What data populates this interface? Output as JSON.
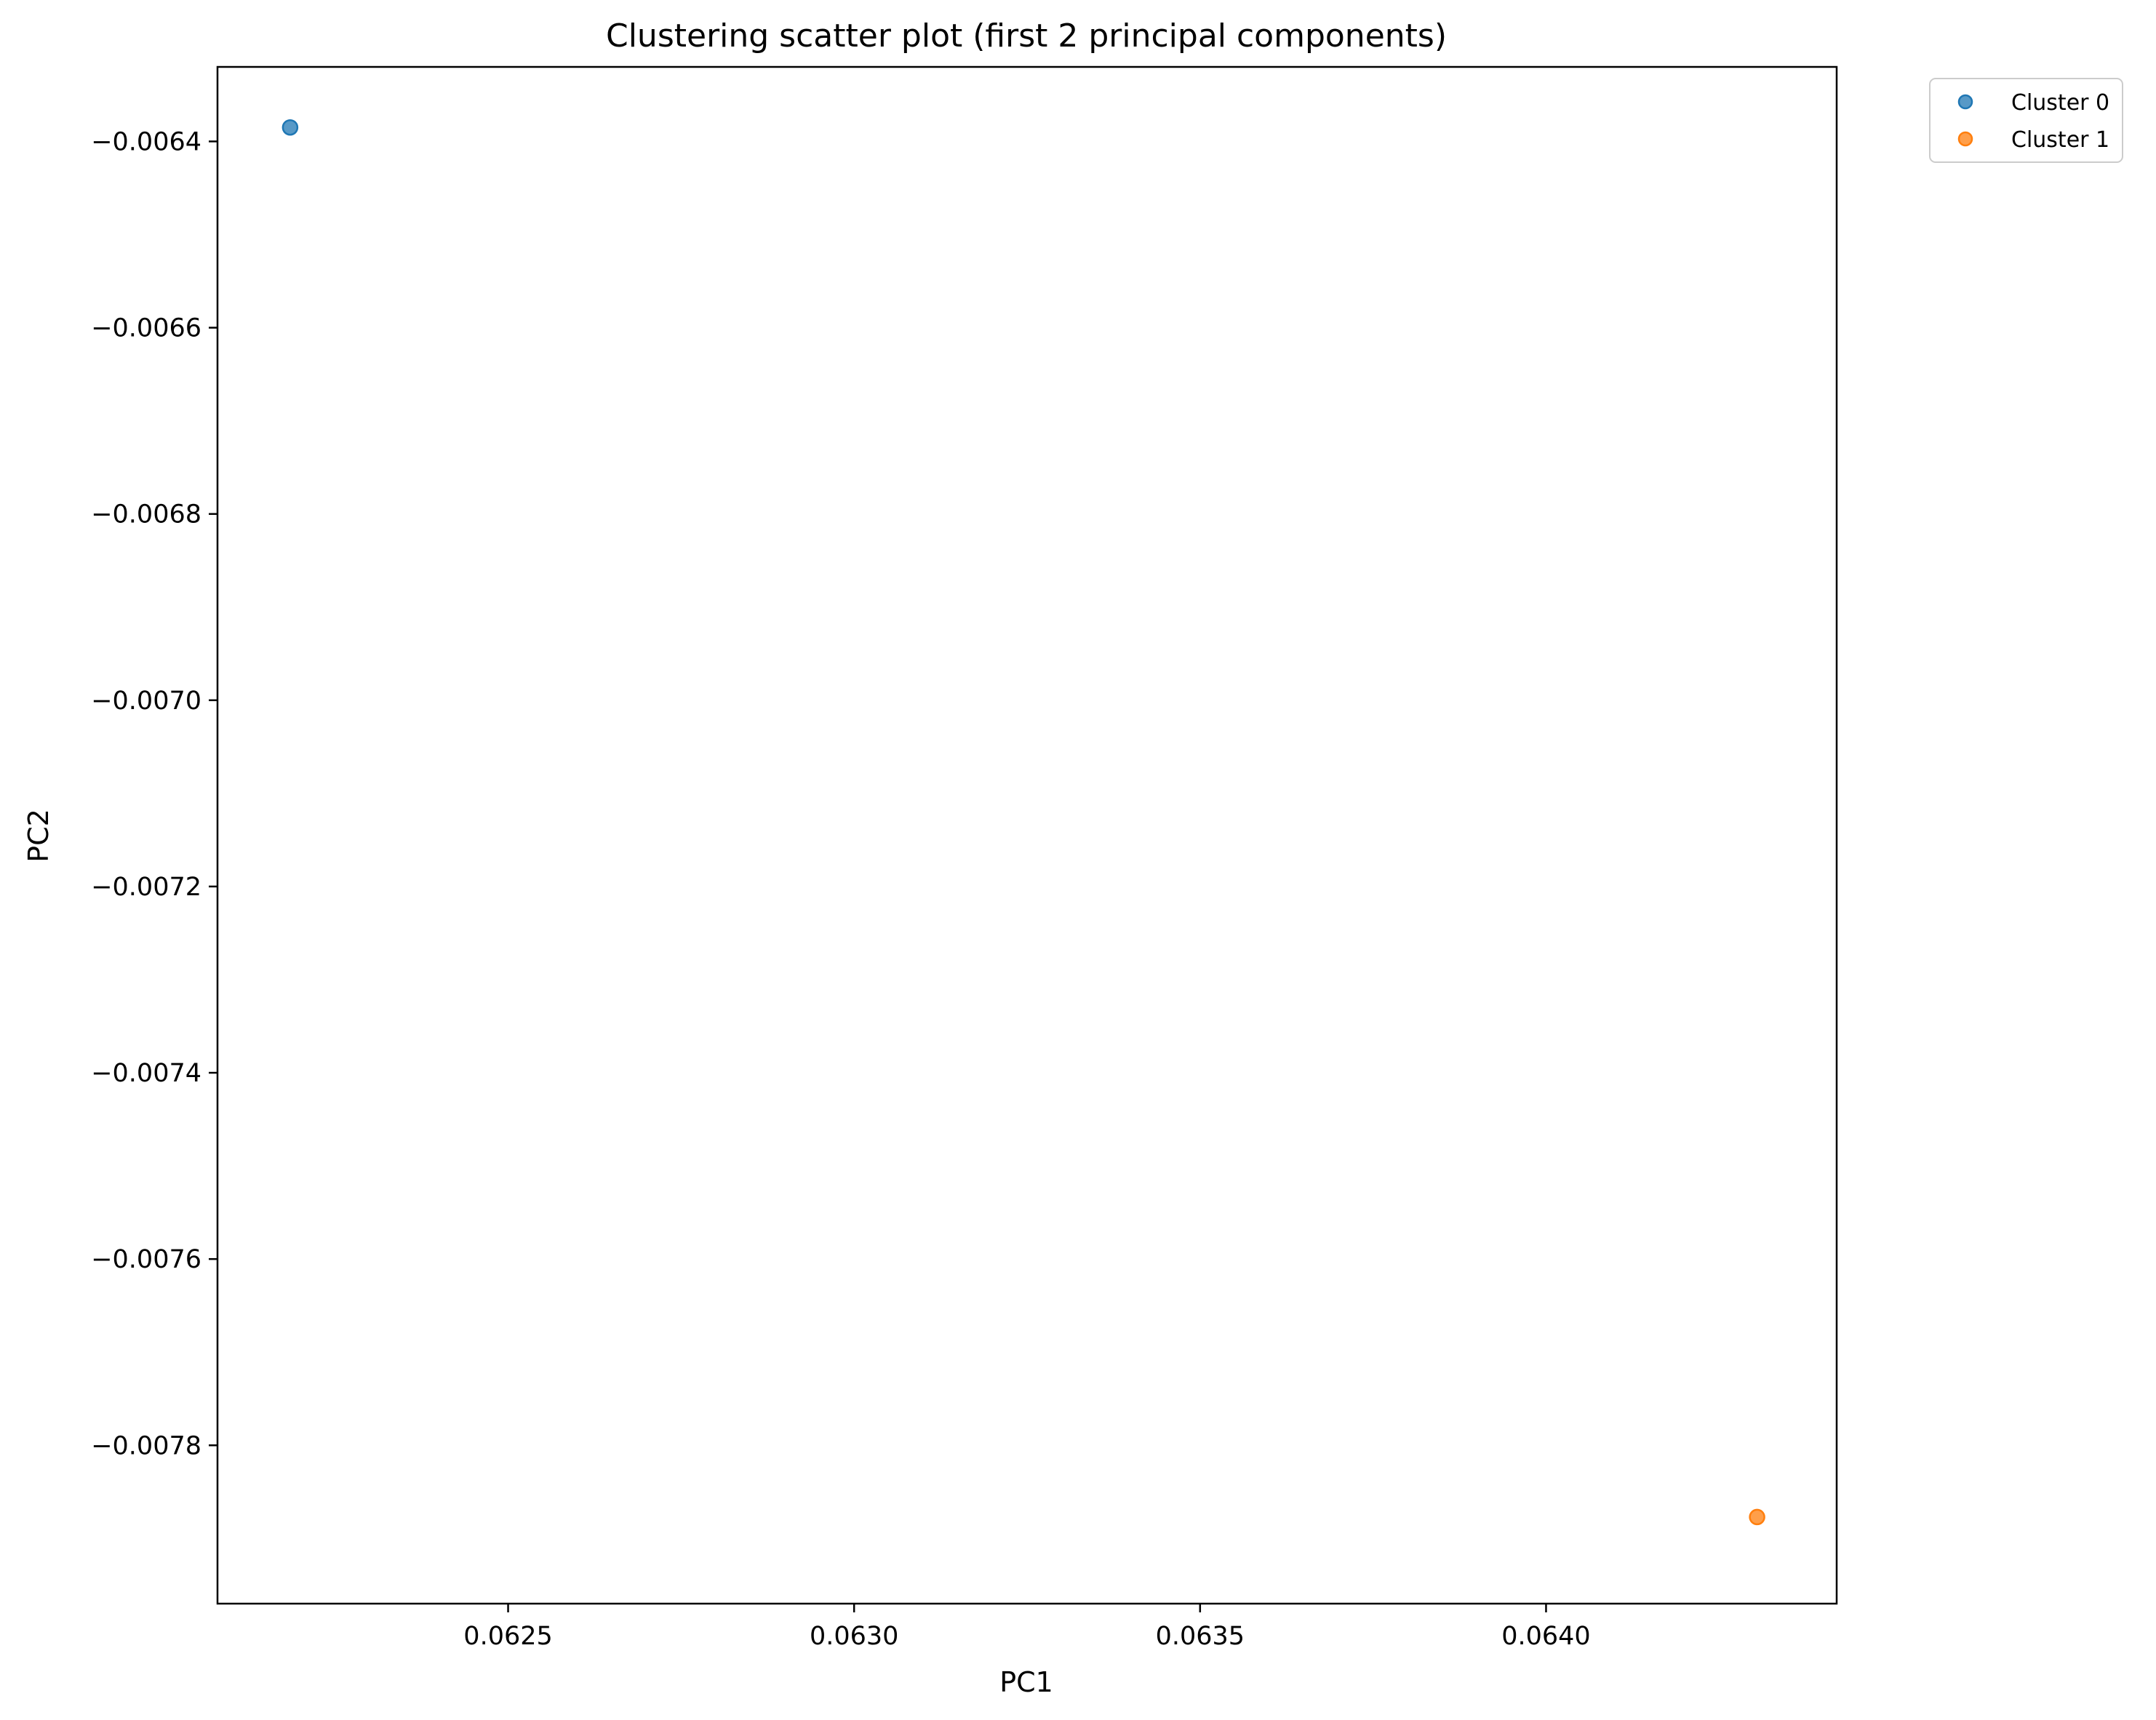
{
  "chart_data": {
    "type": "scatter",
    "title": "Clustering scatter plot (first 2 principal components)",
    "xlabel": "PC1",
    "ylabel": "PC2",
    "xlim": [
      0.06208,
      0.06442
    ],
    "ylim": [
      -0.00797,
      -0.00632
    ],
    "x_ticks": [
      0.0625,
      0.063,
      0.0635,
      0.064
    ],
    "x_tick_labels": [
      "0.0625",
      "0.0630",
      "0.0635",
      "0.0640"
    ],
    "y_ticks": [
      -0.0064,
      -0.0066,
      -0.0068,
      -0.007,
      -0.0072,
      -0.0074,
      -0.0076,
      -0.0078
    ],
    "y_tick_labels": [
      "−0.0064",
      "−0.0066",
      "−0.0068",
      "−0.0070",
      "−0.0072",
      "−0.0074",
      "−0.0076",
      "−0.0078"
    ],
    "grid": false,
    "legend_position": "outside-top-right",
    "series": [
      {
        "name": "Cluster 0",
        "color": "#1f77b4",
        "points": [
          {
            "x": 0.062185,
            "y": -0.006385
          }
        ]
      },
      {
        "name": "Cluster 1",
        "color": "#ff7f0e",
        "points": [
          {
            "x": 0.064305,
            "y": -0.007877
          }
        ]
      }
    ]
  }
}
